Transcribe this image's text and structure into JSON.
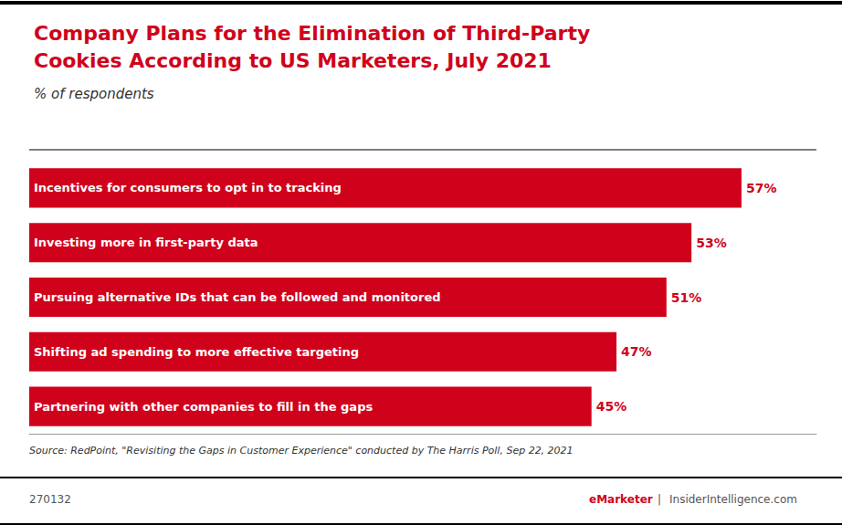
{
  "chart_data": {
    "type": "bar",
    "orientation": "horizontal",
    "title": "Company Plans for the Elimination of Third-Party\nCookies According to US Marketers, July 2021",
    "subtitle": "% of respondents",
    "categories": [
      "Incentives for consumers to opt in to tracking",
      "Investing more in first-party data",
      "Pursuing alternative IDs that can be followed and monitored",
      "Shifting ad spending to more effective targeting",
      "Partnering with other companies to fill in the gaps"
    ],
    "values": [
      57,
      53,
      51,
      47,
      45
    ],
    "value_labels": [
      "57%",
      "53%",
      "51%",
      "47%",
      "45%"
    ],
    "data_labels": true,
    "color": "#d0021b",
    "xlim": [
      0,
      63
    ],
    "tick_labels": false,
    "grid": false,
    "annotations": [
      "Source: RedPoint, \"Revisiting the Gaps in Customer Experience\" conducted by The Harris Poll, Sep 22, 2021",
      "270132",
      "eMarketer",
      "|",
      "InsiderIntelligence.com"
    ]
  }
}
